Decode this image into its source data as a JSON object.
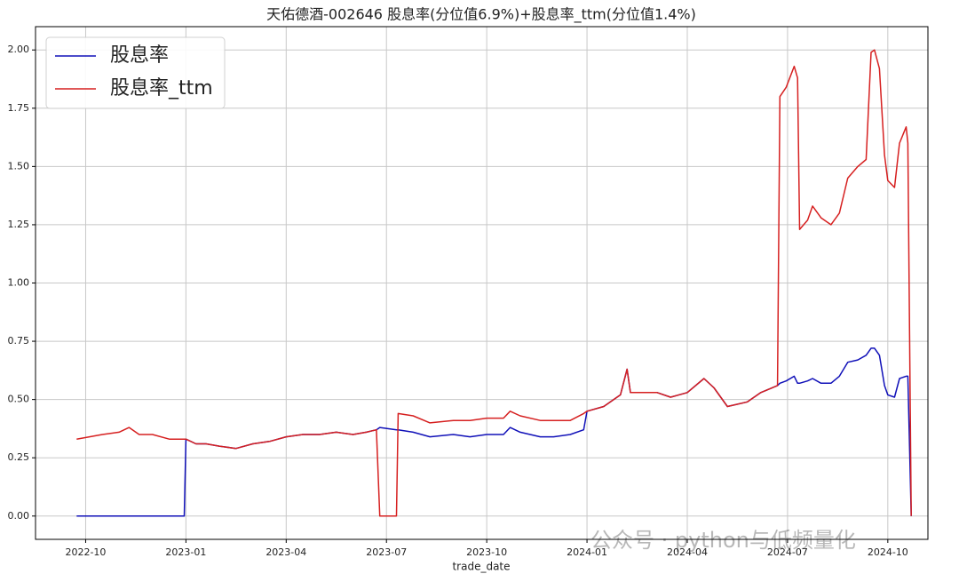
{
  "chart_data": {
    "type": "line",
    "title": "天佑德酒-002646 股息率(分位值6.9%)+股息率_ttm(分位值1.4%)",
    "x_label": "trade_date",
    "watermark": "公众号 · python与低频量化",
    "legend": "upper left",
    "grid": true,
    "xlim": [
      -1.5,
      25.2
    ],
    "xticks": [
      {
        "value": 0,
        "label": "2022-10"
      },
      {
        "value": 3,
        "label": "2023-01"
      },
      {
        "value": 6,
        "label": "2023-04"
      },
      {
        "value": 9,
        "label": "2023-07"
      },
      {
        "value": 12,
        "label": "2023-10"
      },
      {
        "value": 15,
        "label": "2024-01"
      },
      {
        "value": 18,
        "label": "2024-04"
      },
      {
        "value": 21,
        "label": "2024-07"
      },
      {
        "value": 24,
        "label": "2024-10"
      }
    ],
    "ylim": [
      -0.1,
      2.1
    ],
    "yticks": [
      {
        "value": 0,
        "label": "0.00"
      },
      {
        "value": 0.25,
        "label": "0.25"
      },
      {
        "value": 0.5,
        "label": "0.50"
      },
      {
        "value": 0.75,
        "label": "0.75"
      },
      {
        "value": 1,
        "label": "1.00"
      },
      {
        "value": 1.25,
        "label": "1.25"
      },
      {
        "value": 1.5,
        "label": "1.50"
      },
      {
        "value": 1.75,
        "label": "1.75"
      },
      {
        "value": 2,
        "label": "2.00"
      }
    ],
    "x": [
      -0.27,
      0.5,
      1.0,
      1.3,
      1.6,
      2.0,
      2.5,
      2.95,
      3.0,
      3.3,
      3.6,
      4.0,
      4.5,
      5.0,
      5.5,
      6.0,
      6.5,
      7.0,
      7.5,
      8.0,
      8.4,
      8.7,
      8.8,
      9.3,
      9.35,
      9.8,
      10.3,
      11.0,
      11.5,
      12.0,
      12.5,
      12.7,
      13.0,
      13.6,
      14.0,
      14.5,
      14.9,
      15.0,
      15.5,
      16.0,
      16.2,
      16.3,
      17.1,
      17.5,
      18.0,
      18.5,
      18.8,
      19.2,
      19.8,
      20.2,
      20.7,
      20.77,
      20.96,
      21.2,
      21.3,
      21.36,
      21.6,
      21.75,
      22.0,
      22.3,
      22.55,
      22.8,
      23.1,
      23.35,
      23.5,
      23.6,
      23.75,
      23.9,
      24.0,
      24.2,
      24.35,
      24.55,
      24.6,
      24.7
    ],
    "series": [
      {
        "name": "股息率",
        "color": "#1010b8",
        "values": [
          0,
          0,
          0,
          0,
          0,
          0,
          0,
          0,
          0.33,
          0.31,
          0.31,
          0.3,
          0.29,
          0.31,
          0.32,
          0.34,
          0.35,
          0.35,
          0.36,
          0.35,
          0.36,
          0.37,
          0.38,
          0.37,
          0.37,
          0.36,
          0.34,
          0.35,
          0.34,
          0.35,
          0.35,
          0.38,
          0.36,
          0.34,
          0.34,
          0.35,
          0.37,
          0.45,
          0.47,
          0.52,
          0.63,
          0.53,
          0.53,
          0.51,
          0.53,
          0.59,
          0.55,
          0.47,
          0.49,
          0.53,
          0.56,
          0.57,
          0.58,
          0.6,
          0.57,
          0.57,
          0.58,
          0.59,
          0.57,
          0.57,
          0.6,
          0.66,
          0.67,
          0.69,
          0.72,
          0.72,
          0.69,
          0.56,
          0.52,
          0.51,
          0.59,
          0.6,
          0.6,
          0
        ]
      },
      {
        "name": "股息率_ttm",
        "color": "#d62020",
        "values": [
          0.33,
          0.35,
          0.36,
          0.38,
          0.35,
          0.35,
          0.33,
          0.33,
          0.33,
          0.31,
          0.31,
          0.3,
          0.29,
          0.31,
          0.32,
          0.34,
          0.35,
          0.35,
          0.36,
          0.35,
          0.36,
          0.37,
          0,
          0,
          0.44,
          0.43,
          0.4,
          0.41,
          0.41,
          0.42,
          0.42,
          0.45,
          0.43,
          0.41,
          0.41,
          0.41,
          0.44,
          0.45,
          0.47,
          0.52,
          0.63,
          0.53,
          0.53,
          0.51,
          0.53,
          0.59,
          0.55,
          0.47,
          0.49,
          0.53,
          0.56,
          1.8,
          1.84,
          1.93,
          1.88,
          1.23,
          1.27,
          1.33,
          1.28,
          1.25,
          1.3,
          1.45,
          1.5,
          1.53,
          1.99,
          2.0,
          1.92,
          1.55,
          1.44,
          1.41,
          1.6,
          1.67,
          1.6,
          0
        ]
      }
    ]
  }
}
